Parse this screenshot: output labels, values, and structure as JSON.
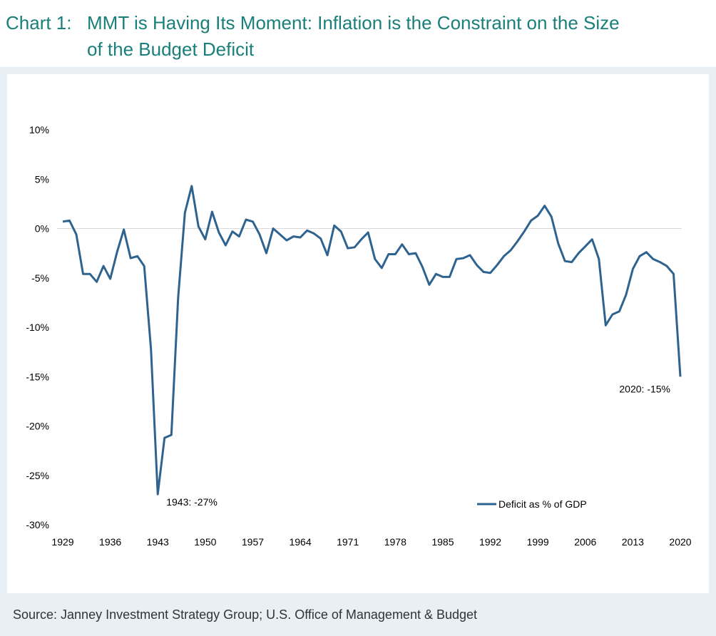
{
  "title": {
    "prefix": "Chart 1:",
    "line1": "MMT is Having Its Moment: Inflation is the Constraint on the Size",
    "line2": "of the Budget Deficit"
  },
  "source": "Source: Janney Investment Strategy Group; U.S. Office of Management & Budget",
  "colors": {
    "title": "#1a7f7a",
    "line": "#2e6390",
    "panel": "#e8f0f6"
  },
  "chart_data": {
    "type": "line",
    "title": "",
    "xlabel": "",
    "ylabel": "",
    "ylim": [
      -30,
      10
    ],
    "xlim": [
      1929,
      2020
    ],
    "grid": false,
    "legend_position": "bottom-right",
    "y_ticks": [
      "10%",
      "5%",
      "0%",
      "-5%",
      "-10%",
      "-15%",
      "-20%",
      "-25%",
      "-30%"
    ],
    "y_tick_values": [
      10,
      5,
      0,
      -5,
      -10,
      -15,
      -20,
      -25,
      -30
    ],
    "x_ticks": [
      "1929",
      "1936",
      "1943",
      "1950",
      "1957",
      "1964",
      "1971",
      "1978",
      "1985",
      "1992",
      "1999",
      "2006",
      "2013",
      "2020"
    ],
    "x_tick_values": [
      1929,
      1936,
      1943,
      1950,
      1957,
      1964,
      1971,
      1978,
      1985,
      1992,
      1999,
      2006,
      2013,
      2020
    ],
    "series": [
      {
        "name": "Deficit as % of GDP",
        "x": [
          1929,
          1930,
          1931,
          1932,
          1933,
          1934,
          1935,
          1936,
          1937,
          1938,
          1939,
          1940,
          1941,
          1942,
          1943,
          1944,
          1945,
          1946,
          1947,
          1948,
          1949,
          1950,
          1951,
          1952,
          1953,
          1954,
          1955,
          1956,
          1957,
          1958,
          1959,
          1960,
          1961,
          1962,
          1963,
          1964,
          1965,
          1966,
          1967,
          1968,
          1969,
          1970,
          1971,
          1972,
          1973,
          1974,
          1975,
          1976,
          1977,
          1978,
          1979,
          1980,
          1981,
          1982,
          1983,
          1984,
          1985,
          1986,
          1987,
          1988,
          1989,
          1990,
          1991,
          1992,
          1993,
          1994,
          1995,
          1996,
          1997,
          1998,
          1999,
          2000,
          2001,
          2002,
          2003,
          2004,
          2005,
          2006,
          2007,
          2008,
          2009,
          2010,
          2011,
          2012,
          2013,
          2014,
          2015,
          2016,
          2017,
          2018,
          2019,
          2020
        ],
        "values": [
          0.7,
          0.8,
          -0.6,
          -4.6,
          -4.6,
          -5.4,
          -3.8,
          -5.1,
          -2.4,
          -0.1,
          -3.0,
          -2.8,
          -3.8,
          -12.2,
          -26.9,
          -21.2,
          -20.9,
          -7.0,
          1.6,
          4.3,
          0.2,
          -1.1,
          1.7,
          -0.4,
          -1.7,
          -0.3,
          -0.8,
          0.9,
          0.7,
          -0.6,
          -2.5,
          0.0,
          -0.6,
          -1.2,
          -0.8,
          -0.9,
          -0.2,
          -0.5,
          -1.0,
          -2.7,
          0.3,
          -0.3,
          -2.0,
          -1.9,
          -1.1,
          -0.4,
          -3.1,
          -4.0,
          -2.6,
          -2.6,
          -1.6,
          -2.6,
          -2.5,
          -3.9,
          -5.7,
          -4.6,
          -4.9,
          -4.9,
          -3.1,
          -3.0,
          -2.7,
          -3.7,
          -4.4,
          -4.5,
          -3.7,
          -2.8,
          -2.2,
          -1.3,
          -0.3,
          0.8,
          1.3,
          2.3,
          1.2,
          -1.5,
          -3.3,
          -3.4,
          -2.5,
          -1.8,
          -1.1,
          -3.1,
          -9.8,
          -8.7,
          -8.4,
          -6.7,
          -4.1,
          -2.8,
          -2.4,
          -3.1,
          -3.4,
          -3.8,
          -4.6,
          -15.0
        ]
      }
    ],
    "annotations": [
      {
        "text": "1943: -27%",
        "x": 1943,
        "y": -26.9
      },
      {
        "text": "2020: -15%",
        "x": 2020,
        "y": -15.0
      }
    ]
  }
}
